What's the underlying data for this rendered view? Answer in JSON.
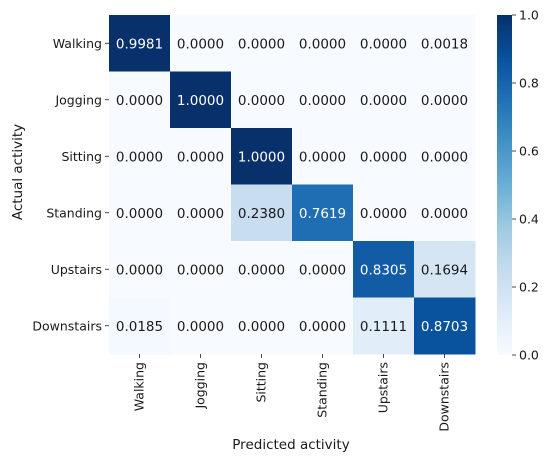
{
  "chart_data": {
    "type": "heatmap",
    "title": "",
    "xlabel": "Predicted activity",
    "ylabel": "Actual activity",
    "x_categories": [
      "Walking",
      "Jogging",
      "Sitting",
      "Standing",
      "Upstairs",
      "Downstairs"
    ],
    "y_categories": [
      "Walking",
      "Jogging",
      "Sitting",
      "Standing",
      "Upstairs",
      "Downstairs"
    ],
    "values": [
      [
        0.9981,
        0.0,
        0.0,
        0.0,
        0.0,
        0.0018
      ],
      [
        0.0,
        1.0,
        0.0,
        0.0,
        0.0,
        0.0
      ],
      [
        0.0,
        0.0,
        1.0,
        0.0,
        0.0,
        0.0
      ],
      [
        0.0,
        0.0,
        0.238,
        0.7619,
        0.0,
        0.0
      ],
      [
        0.0,
        0.0,
        0.0,
        0.0,
        0.8305,
        0.1694
      ],
      [
        0.0185,
        0.0,
        0.0,
        0.0,
        0.1111,
        0.8703
      ]
    ],
    "value_format": "0.0000",
    "colormap": "Blues",
    "colorbar": {
      "range": [
        0.0,
        1.0
      ],
      "ticks": [
        0.0,
        0.2,
        0.4,
        0.6,
        0.8,
        1.0
      ]
    },
    "grid": false
  }
}
